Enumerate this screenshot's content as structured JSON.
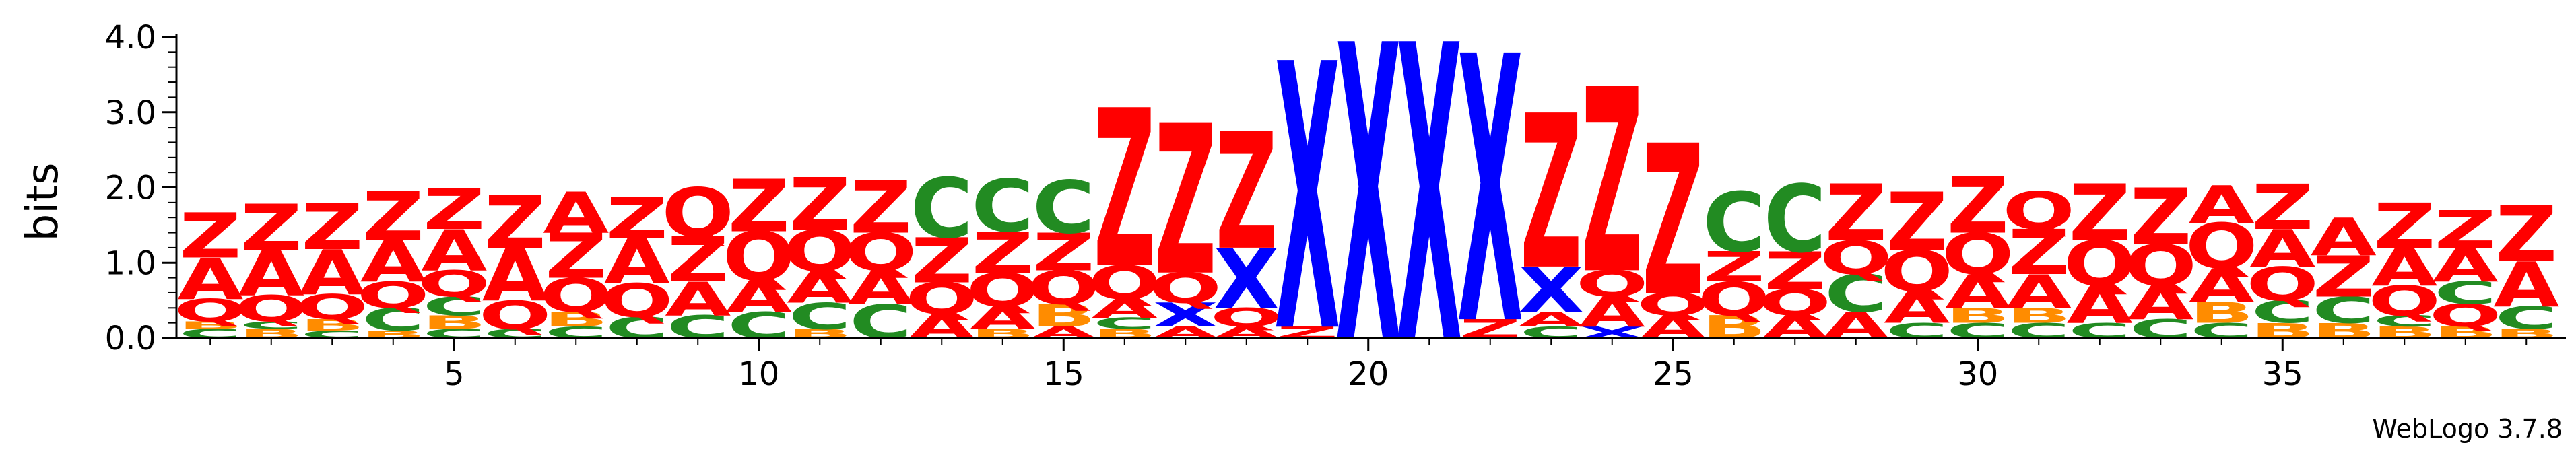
{
  "chart_data": {
    "type": "sequence-logo",
    "ylabel": "bits",
    "ylim": [
      0,
      4.0
    ],
    "y_ticks": [
      {
        "value": 0,
        "label": "0.0"
      },
      {
        "value": 1,
        "label": "1.0"
      },
      {
        "value": 2,
        "label": "2.0"
      },
      {
        "value": 3,
        "label": "3.0"
      },
      {
        "value": 4,
        "label": "4.0"
      }
    ],
    "x_range": [
      1,
      39
    ],
    "x_ticks": [
      {
        "value": 5,
        "label": "5"
      },
      {
        "value": 10,
        "label": "10"
      },
      {
        "value": 15,
        "label": "15"
      },
      {
        "value": 20,
        "label": "20"
      },
      {
        "value": 25,
        "label": "25"
      },
      {
        "value": 30,
        "label": "30"
      },
      {
        "value": 35,
        "label": "35"
      }
    ],
    "credit": "WebLogo 3.7.8",
    "colors": {
      "Z": "#ff0000",
      "A": "#ff0000",
      "Q": "#ff0000",
      "C": "#228b22",
      "B": "#ff8c00",
      "X": "#0000ff"
    },
    "positions": [
      {
        "pos": 1,
        "stack": [
          [
            "C",
            0.12
          ],
          [
            "B",
            0.1
          ],
          [
            "Q",
            0.3
          ],
          [
            "A",
            0.55
          ],
          [
            "Z",
            0.6
          ]
        ]
      },
      {
        "pos": 2,
        "stack": [
          [
            "B",
            0.12
          ],
          [
            "C",
            0.1
          ],
          [
            "Q",
            0.35
          ],
          [
            "A",
            0.6
          ],
          [
            "Z",
            0.62
          ]
        ]
      },
      {
        "pos": 3,
        "stack": [
          [
            "C",
            0.1
          ],
          [
            "B",
            0.15
          ],
          [
            "Q",
            0.33
          ],
          [
            "A",
            0.6
          ],
          [
            "Z",
            0.62
          ]
        ]
      },
      {
        "pos": 4,
        "stack": [
          [
            "B",
            0.1
          ],
          [
            "C",
            0.3
          ],
          [
            "Q",
            0.35
          ],
          [
            "A",
            0.55
          ],
          [
            "Z",
            0.65
          ]
        ]
      },
      {
        "pos": 5,
        "stack": [
          [
            "C",
            0.12
          ],
          [
            "B",
            0.18
          ],
          [
            "C",
            0.25
          ],
          [
            "Q",
            0.35
          ],
          [
            "A",
            0.55
          ],
          [
            "Z",
            0.55
          ]
        ]
      },
      {
        "pos": 6,
        "stack": [
          [
            "C",
            0.12
          ],
          [
            "Q",
            0.38
          ],
          [
            "A",
            0.7
          ],
          [
            "Z",
            0.7
          ]
        ]
      },
      {
        "pos": 7,
        "stack": [
          [
            "C",
            0.15
          ],
          [
            "B",
            0.2
          ],
          [
            "Q",
            0.45
          ],
          [
            "Z",
            0.6
          ],
          [
            "A",
            0.55
          ]
        ]
      },
      {
        "pos": 8,
        "stack": [
          [
            "C",
            0.28
          ],
          [
            "Q",
            0.45
          ],
          [
            "A",
            0.6
          ],
          [
            "Z",
            0.55
          ]
        ]
      },
      {
        "pos": 9,
        "stack": [
          [
            "C",
            0.3
          ],
          [
            "A",
            0.45
          ],
          [
            "Z",
            0.6
          ],
          [
            "Q",
            0.65
          ]
        ]
      },
      {
        "pos": 10,
        "stack": [
          [
            "C",
            0.35
          ],
          [
            "A",
            0.42
          ],
          [
            "Q",
            0.65
          ],
          [
            "Z",
            0.7
          ]
        ]
      },
      {
        "pos": 11,
        "stack": [
          [
            "B",
            0.12
          ],
          [
            "C",
            0.35
          ],
          [
            "A",
            0.42
          ],
          [
            "Q",
            0.55
          ],
          [
            "Z",
            0.7
          ]
        ]
      },
      {
        "pos": 12,
        "stack": [
          [
            "C",
            0.45
          ],
          [
            "A",
            0.45
          ],
          [
            "Q",
            0.5
          ],
          [
            "Z",
            0.7
          ]
        ]
      },
      {
        "pos": 13,
        "stack": [
          [
            "A",
            0.32
          ],
          [
            "Q",
            0.42
          ],
          [
            "Z",
            0.6
          ],
          [
            "C",
            0.8
          ]
        ]
      },
      {
        "pos": 14,
        "stack": [
          [
            "B",
            0.12
          ],
          [
            "A",
            0.3
          ],
          [
            "Q",
            0.45
          ],
          [
            "Z",
            0.55
          ],
          [
            "C",
            0.7
          ]
        ]
      },
      {
        "pos": 15,
        "stack": [
          [
            "A",
            0.15
          ],
          [
            "B",
            0.3
          ],
          [
            "Q",
            0.45
          ],
          [
            "Z",
            0.5
          ],
          [
            "C",
            0.7
          ]
        ]
      },
      {
        "pos": 16,
        "stack": [
          [
            "B",
            0.12
          ],
          [
            "C",
            0.15
          ],
          [
            "A",
            0.25
          ],
          [
            "Q",
            0.45
          ],
          [
            "Z",
            2.1
          ]
        ]
      },
      {
        "pos": 17,
        "stack": [
          [
            "A",
            0.15
          ],
          [
            "X",
            0.32
          ],
          [
            "Q",
            0.4
          ],
          [
            "Z",
            2.0
          ]
        ]
      },
      {
        "pos": 18,
        "stack": [
          [
            "A",
            0.15
          ],
          [
            "Q",
            0.25
          ],
          [
            "X",
            0.8
          ],
          [
            "Z",
            1.55
          ]
        ]
      },
      {
        "pos": 19,
        "stack": [
          [
            "Z",
            0.15
          ],
          [
            "X",
            3.55
          ]
        ]
      },
      {
        "pos": 20,
        "stack": [
          [
            "X",
            3.95
          ]
        ]
      },
      {
        "pos": 21,
        "stack": [
          [
            "X",
            3.95
          ]
        ]
      },
      {
        "pos": 22,
        "stack": [
          [
            "Z",
            0.25
          ],
          [
            "X",
            3.55
          ]
        ]
      },
      {
        "pos": 23,
        "stack": [
          [
            "C",
            0.15
          ],
          [
            "A",
            0.2
          ],
          [
            "X",
            0.6
          ],
          [
            "Z",
            2.05
          ]
        ]
      },
      {
        "pos": 24,
        "stack": [
          [
            "X",
            0.15
          ],
          [
            "A",
            0.4
          ],
          [
            "Q",
            0.35
          ],
          [
            "Z",
            2.45
          ]
        ]
      },
      {
        "pos": 25,
        "stack": [
          [
            "A",
            0.3
          ],
          [
            "Q",
            0.3
          ],
          [
            "Z",
            2.0
          ]
        ]
      },
      {
        "pos": 26,
        "stack": [
          [
            "B",
            0.3
          ],
          [
            "Q",
            0.45
          ],
          [
            "Z",
            0.4
          ],
          [
            "C",
            0.8
          ]
        ]
      },
      {
        "pos": 27,
        "stack": [
          [
            "A",
            0.3
          ],
          [
            "Q",
            0.35
          ],
          [
            "Z",
            0.5
          ],
          [
            "C",
            0.9
          ]
        ]
      },
      {
        "pos": 28,
        "stack": [
          [
            "A",
            0.35
          ],
          [
            "C",
            0.5
          ],
          [
            "Q",
            0.45
          ],
          [
            "Z",
            0.75
          ]
        ]
      },
      {
        "pos": 29,
        "stack": [
          [
            "C",
            0.2
          ],
          [
            "A",
            0.42
          ],
          [
            "Q",
            0.55
          ],
          [
            "Z",
            0.78
          ]
        ]
      },
      {
        "pos": 30,
        "stack": [
          [
            "C",
            0.2
          ],
          [
            "B",
            0.2
          ],
          [
            "A",
            0.45
          ],
          [
            "Q",
            0.55
          ],
          [
            "Z",
            0.75
          ]
        ]
      },
      {
        "pos": 31,
        "stack": [
          [
            "C",
            0.2
          ],
          [
            "B",
            0.2
          ],
          [
            "A",
            0.45
          ],
          [
            "Z",
            0.6
          ],
          [
            "Q",
            0.5
          ]
        ]
      },
      {
        "pos": 32,
        "stack": [
          [
            "C",
            0.2
          ],
          [
            "A",
            0.5
          ],
          [
            "Q",
            0.6
          ],
          [
            "Z",
            0.75
          ]
        ]
      },
      {
        "pos": 33,
        "stack": [
          [
            "C",
            0.25
          ],
          [
            "A",
            0.45
          ],
          [
            "Q",
            0.55
          ],
          [
            "Z",
            0.75
          ]
        ]
      },
      {
        "pos": 34,
        "stack": [
          [
            "C",
            0.2
          ],
          [
            "B",
            0.28
          ],
          [
            "A",
            0.45
          ],
          [
            "Q",
            0.6
          ],
          [
            "A",
            0.5
          ]
        ]
      },
      {
        "pos": 35,
        "stack": [
          [
            "B",
            0.2
          ],
          [
            "C",
            0.3
          ],
          [
            "Q",
            0.45
          ],
          [
            "A",
            0.5
          ],
          [
            "Z",
            0.6
          ]
        ]
      },
      {
        "pos": 36,
        "stack": [
          [
            "B",
            0.2
          ],
          [
            "C",
            0.35
          ],
          [
            "Z",
            0.55
          ],
          [
            "A",
            0.5
          ]
        ]
      },
      {
        "pos": 37,
        "stack": [
          [
            "B",
            0.15
          ],
          [
            "C",
            0.15
          ],
          [
            "Q",
            0.4
          ],
          [
            "A",
            0.5
          ],
          [
            "Z",
            0.6
          ]
        ]
      },
      {
        "pos": 38,
        "stack": [
          [
            "B",
            0.15
          ],
          [
            "Q",
            0.3
          ],
          [
            "C",
            0.3
          ],
          [
            "A",
            0.45
          ],
          [
            "Z",
            0.5
          ]
        ]
      },
      {
        "pos": 39,
        "stack": [
          [
            "B",
            0.12
          ],
          [
            "C",
            0.3
          ],
          [
            "A",
            0.6
          ],
          [
            "Z",
            0.75
          ]
        ]
      }
    ]
  }
}
